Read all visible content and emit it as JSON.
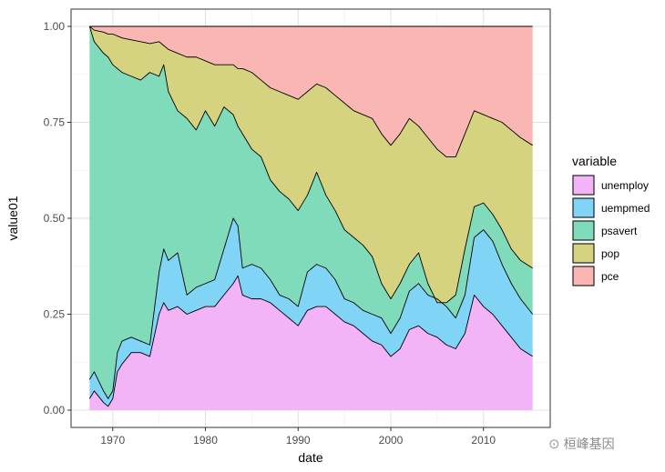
{
  "chart_data": {
    "type": "area",
    "stacked": true,
    "normalized": true,
    "xlabel": "date",
    "ylabel": "value01",
    "xlim": [
      1965.5,
      2017.2
    ],
    "ylim": [
      -0.045,
      1.045
    ],
    "xticks": [
      1970,
      1980,
      1990,
      2000,
      2010
    ],
    "yticks": [
      0.0,
      0.25,
      0.5,
      0.75,
      1.0
    ],
    "ytick_labels": [
      "0.00",
      "0.25",
      "0.50",
      "0.75",
      "1.00"
    ],
    "grid": true,
    "legend": {
      "title": "variable",
      "placement": "right",
      "entries": [
        {
          "name": "unemploy",
          "color": "#F2B3F7"
        },
        {
          "name": "uempmed",
          "color": "#80D5F7"
        },
        {
          "name": "psavert",
          "color": "#80DBBB"
        },
        {
          "name": "pop",
          "color": "#D5D37F"
        },
        {
          "name": "pce",
          "color": "#F9B6B2"
        }
      ]
    },
    "stack_order_bottom_to_top": [
      "unemploy",
      "uempmed",
      "psavert",
      "pop",
      "pce"
    ],
    "x": [
      1967.5,
      1968,
      1969,
      1969.5,
      1970,
      1970.5,
      1971,
      1972,
      1973,
      1974,
      1975,
      1975.5,
      1976,
      1977,
      1978,
      1979,
      1980,
      1981,
      1982,
      1983,
      1983.5,
      1984,
      1985,
      1986,
      1987,
      1988,
      1989,
      1990,
      1991,
      1992,
      1993,
      1994,
      1995,
      1996,
      1997,
      1998,
      1999,
      2000,
      2001,
      2002,
      2003,
      2004,
      2005,
      2006,
      2007,
      2008,
      2009,
      2010,
      2011,
      2012,
      2013,
      2014,
      2015.3
    ],
    "boundaries": [
      {
        "top_of": "unemploy",
        "values": [
          0.03,
          0.05,
          0.02,
          0.01,
          0.03,
          0.1,
          0.12,
          0.15,
          0.15,
          0.14,
          0.25,
          0.28,
          0.26,
          0.27,
          0.25,
          0.26,
          0.27,
          0.27,
          0.3,
          0.33,
          0.35,
          0.3,
          0.29,
          0.29,
          0.28,
          0.26,
          0.24,
          0.22,
          0.26,
          0.27,
          0.27,
          0.25,
          0.23,
          0.22,
          0.2,
          0.18,
          0.17,
          0.14,
          0.16,
          0.21,
          0.22,
          0.2,
          0.19,
          0.17,
          0.16,
          0.2,
          0.3,
          0.27,
          0.25,
          0.22,
          0.19,
          0.16,
          0.14
        ]
      },
      {
        "top_of": "uempmed",
        "values": [
          0.08,
          0.1,
          0.05,
          0.03,
          0.05,
          0.15,
          0.18,
          0.19,
          0.18,
          0.17,
          0.36,
          0.42,
          0.39,
          0.41,
          0.3,
          0.32,
          0.33,
          0.34,
          0.42,
          0.5,
          0.48,
          0.37,
          0.38,
          0.37,
          0.34,
          0.3,
          0.29,
          0.27,
          0.36,
          0.38,
          0.37,
          0.34,
          0.29,
          0.28,
          0.26,
          0.25,
          0.24,
          0.2,
          0.24,
          0.31,
          0.33,
          0.3,
          0.29,
          0.27,
          0.24,
          0.3,
          0.45,
          0.47,
          0.44,
          0.38,
          0.33,
          0.29,
          0.25
        ]
      },
      {
        "top_of": "psavert",
        "values": [
          1.0,
          0.96,
          0.93,
          0.92,
          0.9,
          0.89,
          0.88,
          0.87,
          0.86,
          0.88,
          0.87,
          0.9,
          0.83,
          0.78,
          0.76,
          0.73,
          0.78,
          0.74,
          0.79,
          0.77,
          0.74,
          0.72,
          0.68,
          0.66,
          0.6,
          0.57,
          0.55,
          0.52,
          0.56,
          0.62,
          0.56,
          0.52,
          0.47,
          0.45,
          0.43,
          0.4,
          0.33,
          0.29,
          0.33,
          0.38,
          0.41,
          0.33,
          0.28,
          0.28,
          0.3,
          0.42,
          0.53,
          0.54,
          0.51,
          0.47,
          0.42,
          0.39,
          0.37
        ]
      },
      {
        "top_of": "pop",
        "values": [
          1.0,
          0.99,
          0.985,
          0.98,
          0.98,
          0.975,
          0.97,
          0.965,
          0.96,
          0.955,
          0.96,
          0.95,
          0.94,
          0.93,
          0.92,
          0.92,
          0.91,
          0.9,
          0.9,
          0.9,
          0.89,
          0.89,
          0.88,
          0.86,
          0.84,
          0.83,
          0.82,
          0.81,
          0.83,
          0.85,
          0.84,
          0.82,
          0.8,
          0.78,
          0.77,
          0.76,
          0.72,
          0.69,
          0.72,
          0.76,
          0.74,
          0.71,
          0.68,
          0.66,
          0.66,
          0.72,
          0.78,
          0.77,
          0.76,
          0.75,
          0.73,
          0.71,
          0.69
        ]
      },
      {
        "top_of": "pce",
        "values": [
          1.0,
          1.0,
          1.0,
          1.0,
          1.0,
          1.0,
          1.0,
          1.0,
          1.0,
          1.0,
          1.0,
          1.0,
          1.0,
          1.0,
          1.0,
          1.0,
          1.0,
          1.0,
          1.0,
          1.0,
          1.0,
          1.0,
          1.0,
          1.0,
          1.0,
          1.0,
          1.0,
          1.0,
          1.0,
          1.0,
          1.0,
          1.0,
          1.0,
          1.0,
          1.0,
          1.0,
          1.0,
          1.0,
          1.0,
          1.0,
          1.0,
          1.0,
          1.0,
          1.0,
          1.0,
          1.0,
          1.0,
          1.0,
          1.0,
          1.0,
          1.0,
          1.0,
          1.0
        ]
      }
    ]
  },
  "watermark": {
    "text": "桓峰基因",
    "icon": "wechat-icon"
  }
}
